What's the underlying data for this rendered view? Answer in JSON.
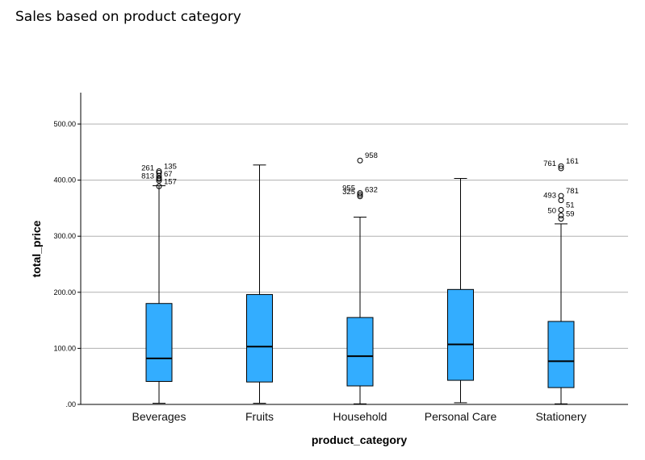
{
  "chart_data": {
    "type": "boxplot",
    "title": "Sales based on product category",
    "xlabel": "product_category",
    "ylabel": "total_price",
    "ylim": [
      0,
      550
    ],
    "yticks": [
      0,
      100,
      200,
      300,
      400,
      500
    ],
    "ytick_labels": [
      ".00",
      "100.00",
      "200.00",
      "300.00",
      "400.00",
      "500.00"
    ],
    "grid": "horizontal",
    "box_color": "#33adff",
    "categories": [
      "Beverages",
      "Fruits",
      "Household",
      "Personal Care",
      "Stationery"
    ],
    "boxes": [
      {
        "category": "Beverages",
        "min": 2,
        "q1": 41,
        "median": 82,
        "q3": 180,
        "max": 390,
        "outliers": [
          {
            "value": 416,
            "label": "135"
          },
          {
            "value": 413,
            "label": "261"
          },
          {
            "value": 408,
            "label": ""
          },
          {
            "value": 404,
            "label": ""
          },
          {
            "value": 402,
            "label": "67"
          },
          {
            "value": 399,
            "label": "813"
          },
          {
            "value": 389,
            "label": "157"
          }
        ]
      },
      {
        "category": "Fruits",
        "min": 2,
        "q1": 40,
        "median": 103,
        "q3": 196,
        "max": 427,
        "outliers": []
      },
      {
        "category": "Household",
        "min": 1,
        "q1": 33,
        "median": 86,
        "q3": 155,
        "max": 334,
        "outliers": [
          {
            "value": 435,
            "label": "958"
          },
          {
            "value": 377,
            "label": "955"
          },
          {
            "value": 374,
            "label": "632"
          },
          {
            "value": 371,
            "label": "325"
          }
        ]
      },
      {
        "category": "Personal Care",
        "min": 3,
        "q1": 43,
        "median": 107,
        "q3": 205,
        "max": 403,
        "outliers": []
      },
      {
        "category": "Stationery",
        "min": 1,
        "q1": 30,
        "median": 77,
        "q3": 148,
        "max": 322,
        "outliers": [
          {
            "value": 425,
            "label": "161"
          },
          {
            "value": 421,
            "label": "761"
          },
          {
            "value": 372,
            "label": "781"
          },
          {
            "value": 364,
            "label": "493"
          },
          {
            "value": 347,
            "label": "51"
          },
          {
            "value": 337,
            "label": "50"
          },
          {
            "value": 331,
            "label": "59"
          }
        ]
      }
    ]
  }
}
